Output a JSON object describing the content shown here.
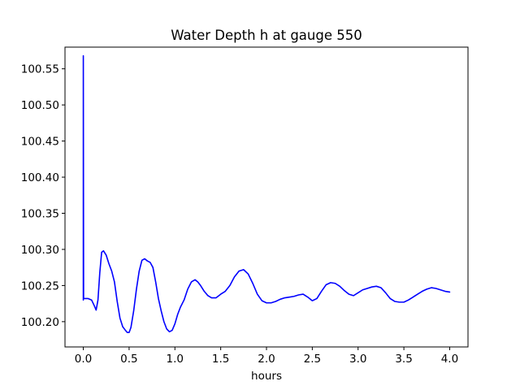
{
  "chart_data": {
    "type": "line",
    "title": "Water Depth h at gauge 550",
    "xlabel": "hours",
    "ylabel": "",
    "xlim": [
      -0.2,
      4.2
    ],
    "ylim": [
      100.165,
      100.58
    ],
    "xticks": [
      0.0,
      0.5,
      1.0,
      1.5,
      2.0,
      2.5,
      3.0,
      3.5,
      4.0
    ],
    "xtick_labels": [
      "0.0",
      "0.5",
      "1.0",
      "1.5",
      "2.0",
      "2.5",
      "3.0",
      "3.5",
      "4.0"
    ],
    "yticks": [
      100.2,
      100.25,
      100.3,
      100.35,
      100.4,
      100.45,
      100.5,
      100.55
    ],
    "ytick_labels": [
      "100.20",
      "100.25",
      "100.30",
      "100.35",
      "100.40",
      "100.45",
      "100.50",
      "100.55"
    ],
    "grid": false,
    "series": [
      {
        "color": "#0000ff",
        "x": [
          0.0,
          0.0,
          0.003,
          0.05,
          0.09,
          0.12,
          0.14,
          0.16,
          0.18,
          0.2,
          0.22,
          0.25,
          0.28,
          0.31,
          0.34,
          0.37,
          0.4,
          0.43,
          0.46,
          0.48,
          0.5,
          0.52,
          0.55,
          0.58,
          0.61,
          0.64,
          0.67,
          0.7,
          0.73,
          0.76,
          0.79,
          0.82,
          0.85,
          0.88,
          0.91,
          0.94,
          0.97,
          1.0,
          1.03,
          1.06,
          1.1,
          1.14,
          1.18,
          1.22,
          1.25,
          1.28,
          1.32,
          1.36,
          1.4,
          1.45,
          1.5,
          1.55,
          1.6,
          1.65,
          1.7,
          1.75,
          1.8,
          1.85,
          1.9,
          1.95,
          2.0,
          2.05,
          2.1,
          2.15,
          2.2,
          2.25,
          2.3,
          2.35,
          2.4,
          2.45,
          2.5,
          2.55,
          2.6,
          2.65,
          2.7,
          2.75,
          2.8,
          2.85,
          2.9,
          2.95,
          3.0,
          3.05,
          3.1,
          3.15,
          3.2,
          3.25,
          3.3,
          3.35,
          3.4,
          3.45,
          3.5,
          3.55,
          3.6,
          3.65,
          3.7,
          3.75,
          3.8,
          3.85,
          3.9,
          3.95,
          4.0
        ],
        "y": [
          100.23,
          100.568,
          100.232,
          100.232,
          100.23,
          100.222,
          100.216,
          100.23,
          100.268,
          100.296,
          100.298,
          100.292,
          100.28,
          100.27,
          100.255,
          100.228,
          100.205,
          100.193,
          100.188,
          100.185,
          100.185,
          100.192,
          100.215,
          100.245,
          100.27,
          100.285,
          100.287,
          100.284,
          100.282,
          100.275,
          100.255,
          100.232,
          100.215,
          100.2,
          100.19,
          100.186,
          100.188,
          100.197,
          100.21,
          100.22,
          100.23,
          100.245,
          100.255,
          100.258,
          100.255,
          100.25,
          100.242,
          100.236,
          100.233,
          100.233,
          100.238,
          100.242,
          100.25,
          100.262,
          100.27,
          100.272,
          100.266,
          100.253,
          100.238,
          100.229,
          100.226,
          100.226,
          100.228,
          100.231,
          100.233,
          100.234,
          100.235,
          100.237,
          100.238,
          100.234,
          100.229,
          100.232,
          100.242,
          100.251,
          100.254,
          100.253,
          100.249,
          100.243,
          100.238,
          100.236,
          100.24,
          100.244,
          100.246,
          100.248,
          100.249,
          100.247,
          100.24,
          100.232,
          100.228,
          100.227,
          100.227,
          100.23,
          100.234,
          100.238,
          100.242,
          100.245,
          100.247,
          100.246,
          100.244,
          100.242,
          100.241
        ]
      }
    ]
  }
}
